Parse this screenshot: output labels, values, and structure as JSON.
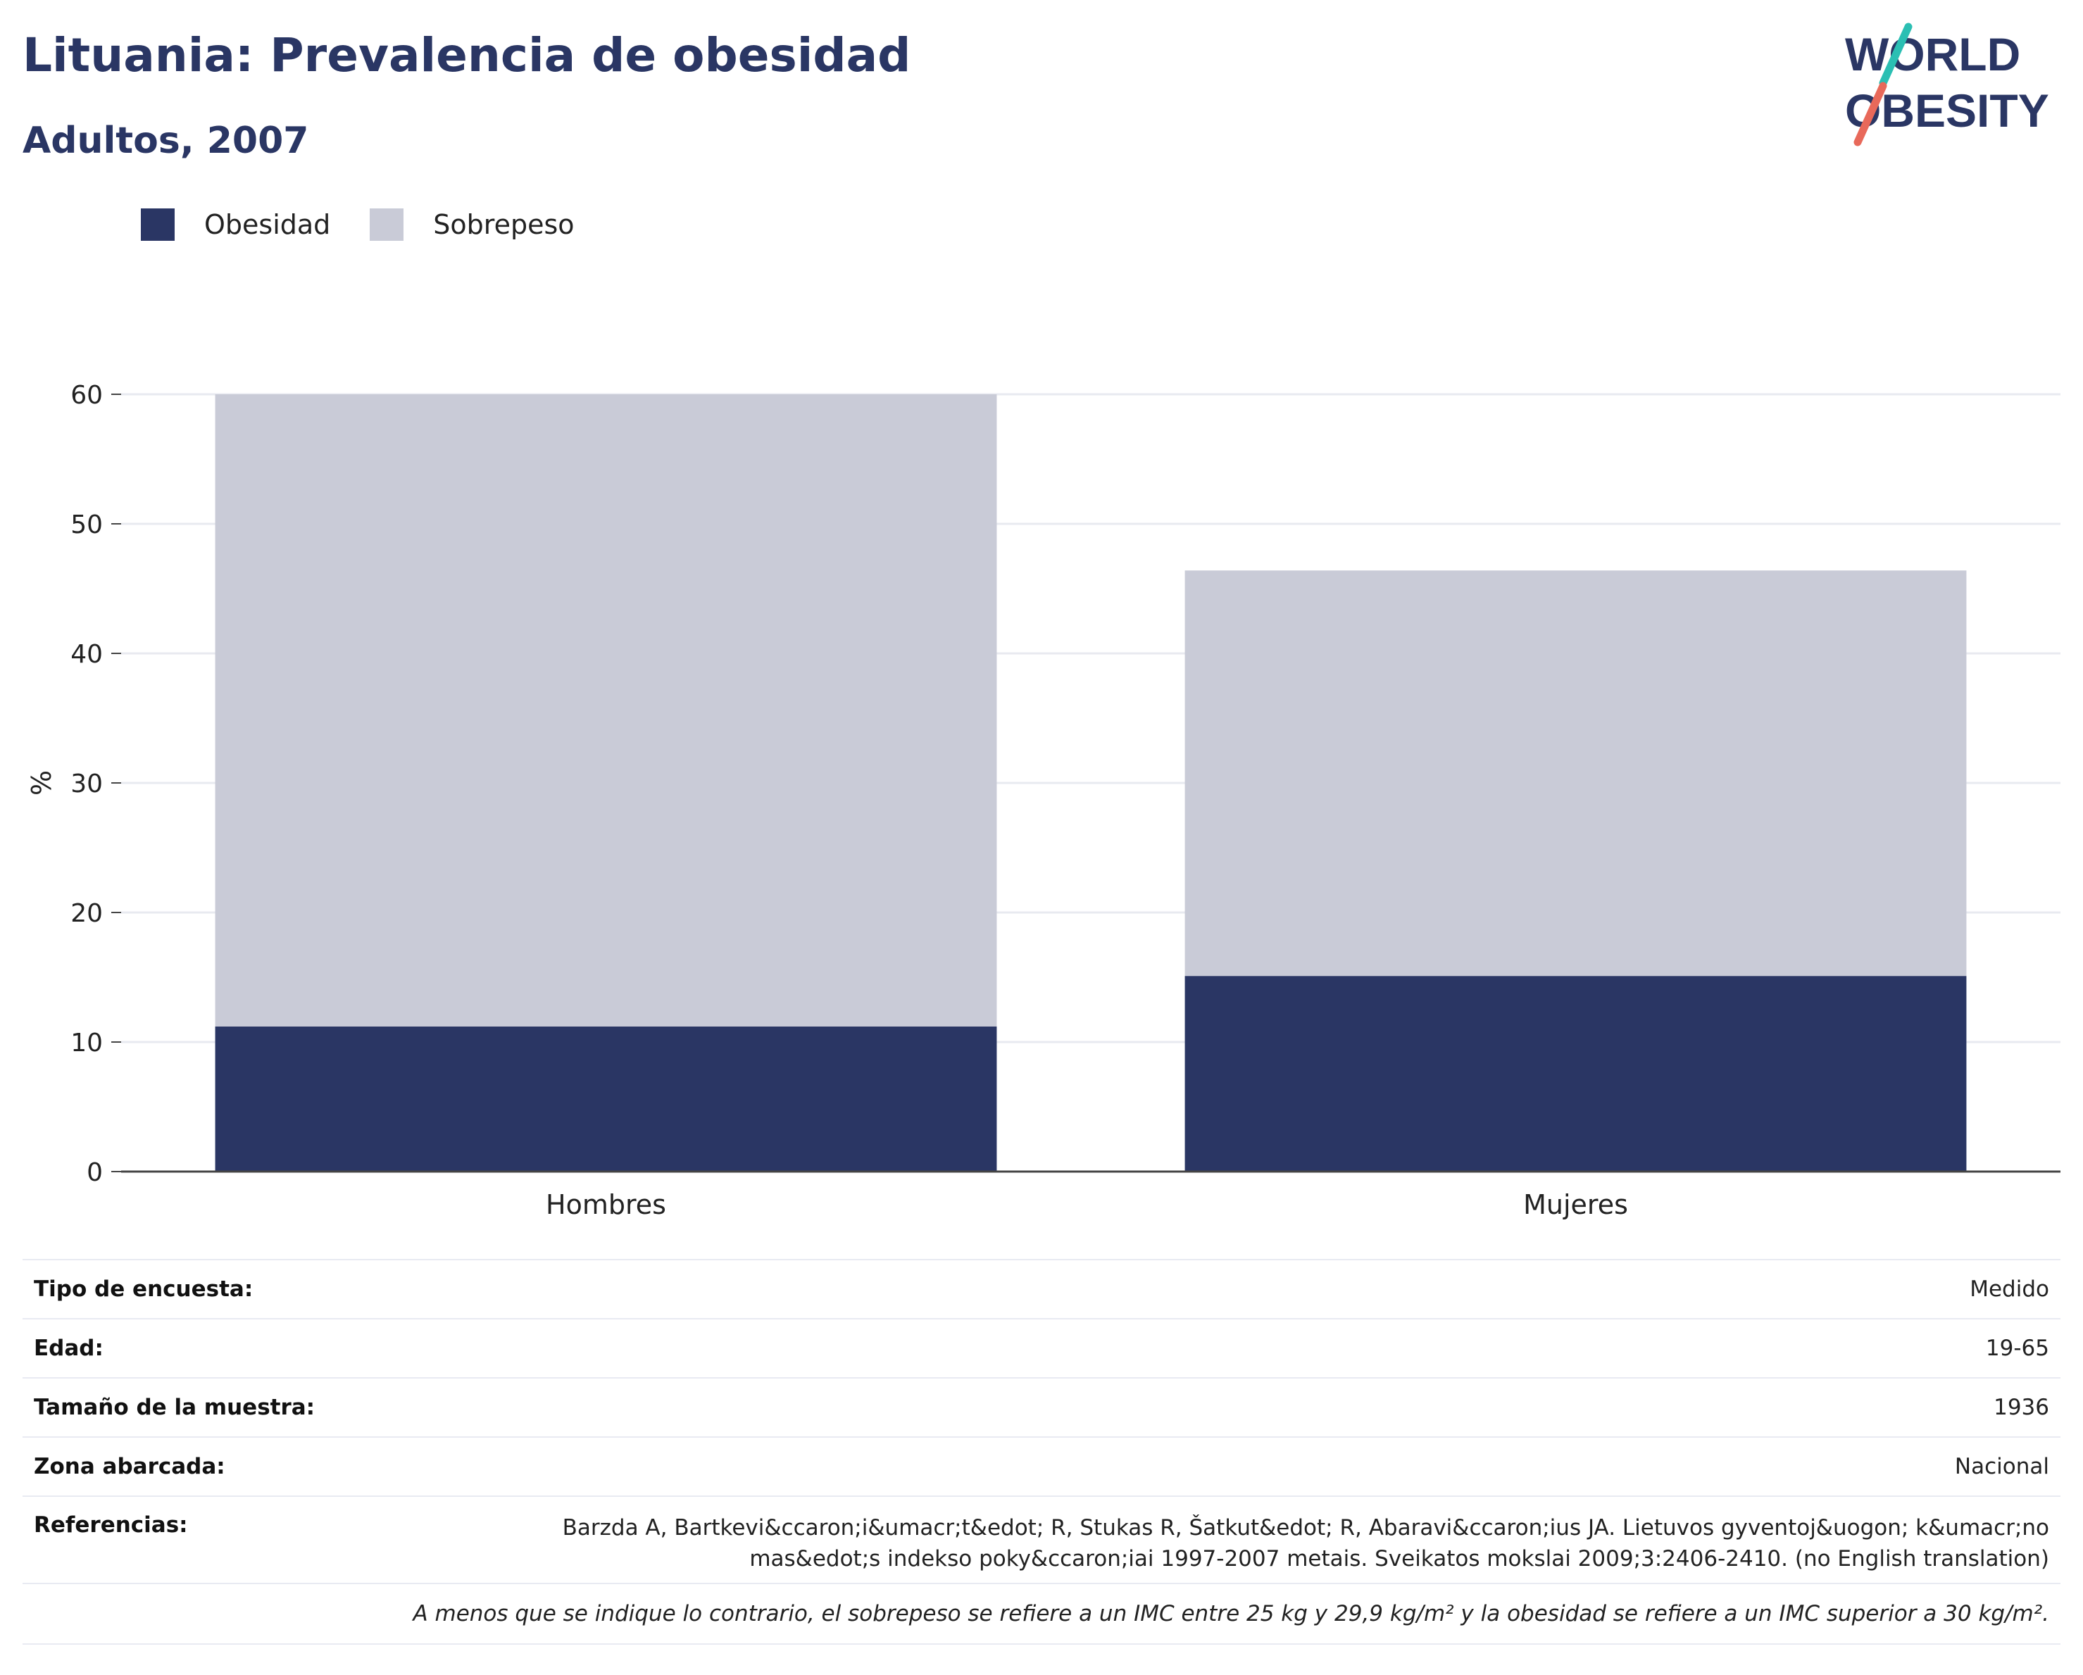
{
  "header": {
    "title": "Lituania: Prevalencia de obesidad",
    "subtitle": "Adultos, 2007"
  },
  "logo": {
    "line1": "WORLD",
    "line2": "OBESITY"
  },
  "colors": {
    "obesity": "#2a3664",
    "overweight": "#c9cbd7",
    "title": "#2a3664",
    "logo_teal": "#2bbfb3",
    "logo_coral": "#e8695a"
  },
  "legend": {
    "placement": "top-left",
    "items": [
      {
        "label": "Obesidad",
        "color": "#2a3664"
      },
      {
        "label": "Sobrepeso",
        "color": "#c9cbd7"
      }
    ]
  },
  "chart_data": {
    "type": "bar",
    "stacked": true,
    "categories": [
      "Hombres",
      "Mujeres"
    ],
    "series": [
      {
        "name": "Obesidad",
        "values": [
          11.2,
          15.1
        ]
      },
      {
        "name": "Sobrepeso",
        "values": [
          48.8,
          31.3
        ]
      }
    ],
    "ylabel": "%",
    "ylim": [
      0,
      60
    ],
    "yticks": [
      0,
      10,
      20,
      30,
      40,
      50,
      60
    ],
    "grid": true
  },
  "meta": {
    "survey_type": {
      "label": "Tipo de encuesta:",
      "value": "Medido"
    },
    "age": {
      "label": "Edad:",
      "value": "19-65"
    },
    "sample_size": {
      "label": "Tamaño de la muestra:",
      "value": "1936"
    },
    "area": {
      "label": "Zona abarcada:",
      "value": "Nacional"
    },
    "references": {
      "label": "Referencias:",
      "value": "Barzda A, Bartkevi&ccaron;i&umacr;t&edot; R, Stukas R, Šatkut&edot; R, Abaravi&ccaron;ius JA. Lietuvos gyventoj&uogon; k&umacr;no mas&edot;s indekso poky&ccaron;iai 1997-2007 metais. Sveikatos mokslai 2009;3:2406-2410. (no English translation)"
    },
    "footnote": "A menos que se indique lo contrario, el sobrepeso se refiere a un IMC entre 25 kg y 29,9 kg/m² y la obesidad se refiere a un IMC superior a 30 kg/m²."
  }
}
